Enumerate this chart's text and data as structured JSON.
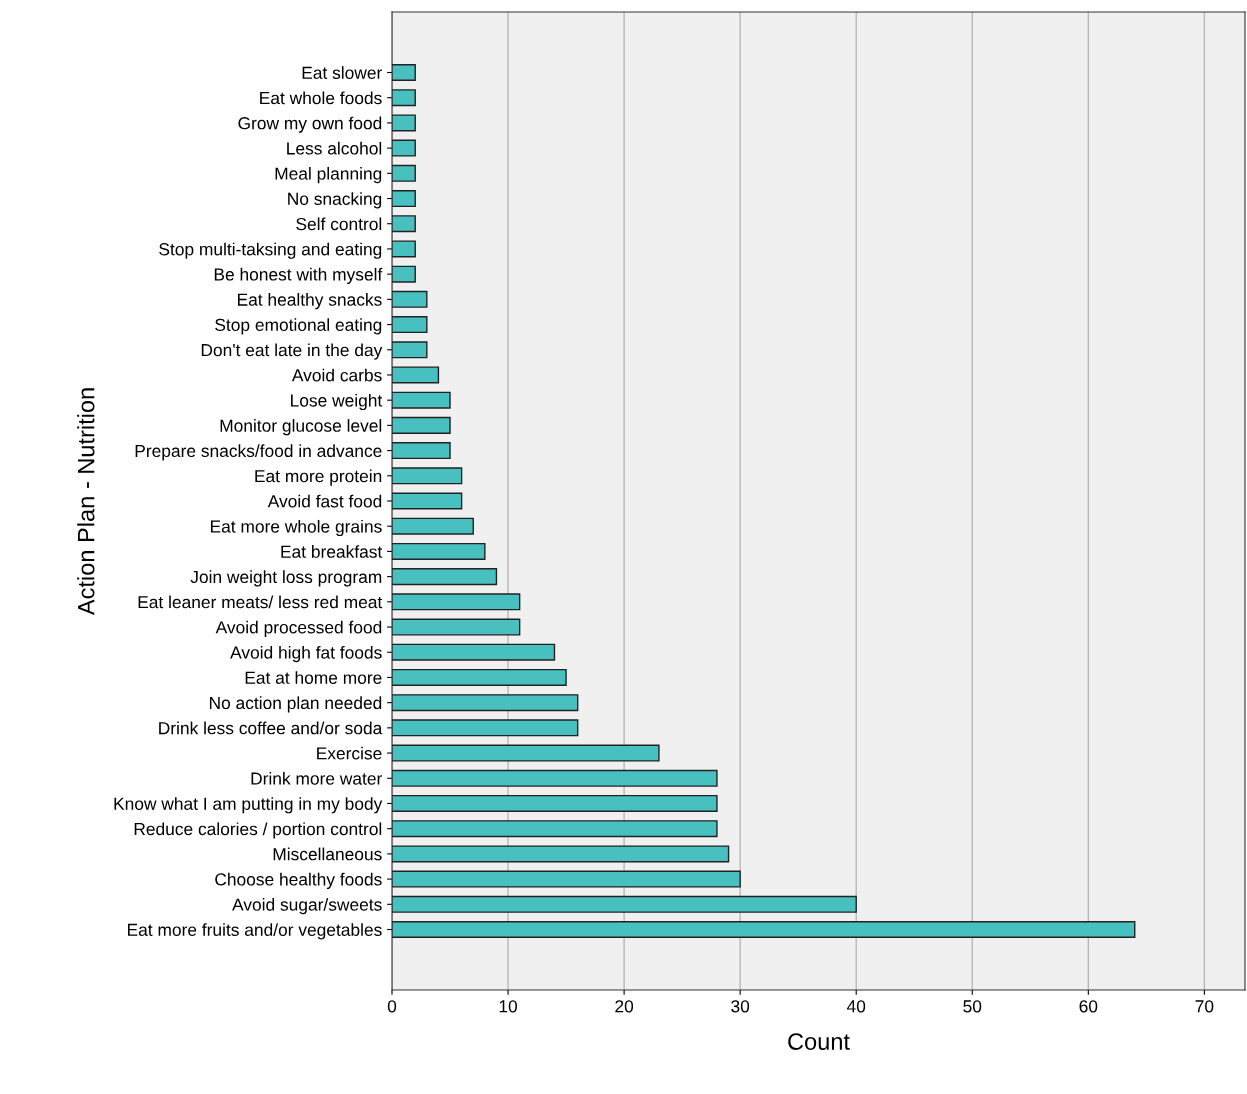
{
  "chart_data": {
    "type": "bar",
    "orientation": "horizontal",
    "xlabel": "Count",
    "ylabel": "Action Plan - Nutrition",
    "categories": [
      "Eat slower",
      "Eat whole foods",
      "Grow my own food",
      "Less alcohol",
      "Meal planning",
      "No snacking",
      "Self control",
      "Stop multi-taksing and eating",
      "Be honest with myself",
      "Eat healthy snacks",
      "Stop emotional eating",
      "Don't eat late in the day",
      "Avoid carbs",
      "Lose weight",
      "Monitor glucose level",
      "Prepare snacks/food in advance",
      "Eat more protein",
      "Avoid fast food",
      "Eat more whole grains",
      "Eat breakfast",
      "Join weight loss program",
      "Eat leaner meats/ less red meat",
      "Avoid processed food",
      "Avoid high fat foods",
      "Eat at home more",
      "No action plan needed",
      "Drink less coffee and/or soda",
      "Exercise",
      "Drink more water",
      "Know what I am putting in my body",
      "Reduce calories / portion control",
      "Miscellaneous",
      "Choose healthy foods",
      "Avoid sugar/sweets",
      "Eat more fruits and/or vegetables"
    ],
    "values": [
      2,
      2,
      2,
      2,
      2,
      2,
      2,
      2,
      2,
      3,
      3,
      3,
      4,
      5,
      5,
      5,
      6,
      6,
      7,
      8,
      9,
      11,
      11,
      14,
      15,
      16,
      16,
      23,
      28,
      28,
      28,
      29,
      30,
      40,
      64
    ],
    "color": "#48c0c0",
    "xlim": [
      0,
      73.5
    ],
    "xticks": [
      0,
      10,
      20,
      30,
      40,
      50,
      60,
      70
    ],
    "grid": "x",
    "legend": false
  }
}
